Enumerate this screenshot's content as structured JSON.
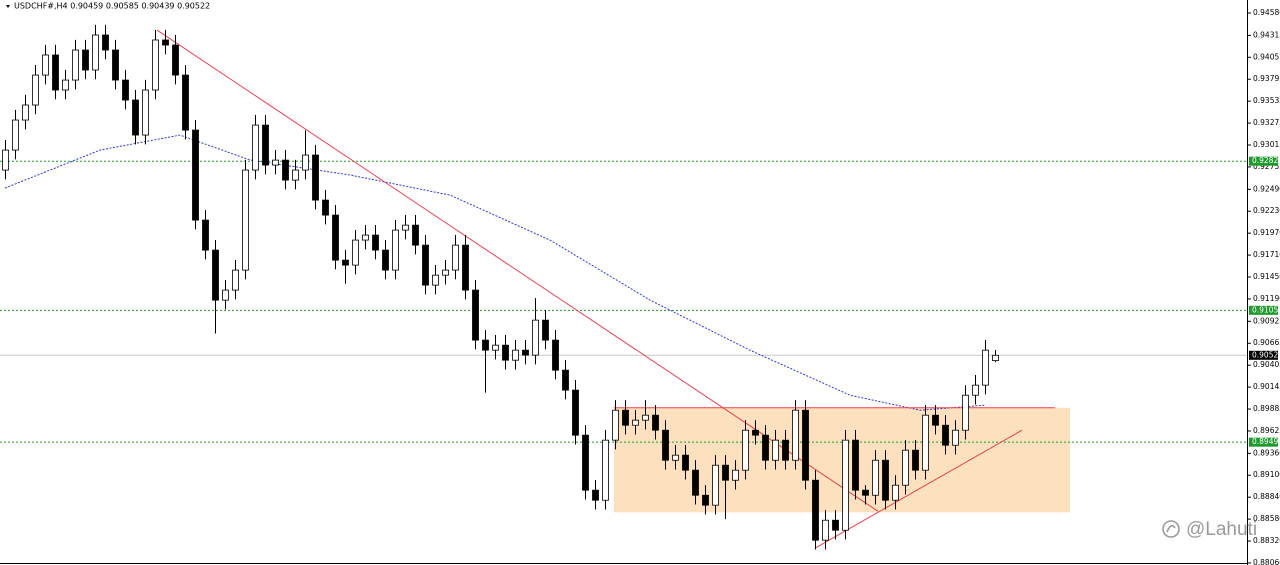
{
  "chart_data": {
    "type": "candlestick",
    "title": "USDCHF#,H4 0.90459 0.90585 0.90439 0.90522",
    "watermark": "@Lahuti",
    "xlim": [
      -0.5,
      124
    ],
    "ylim": [
      0.88036,
      0.94734
    ],
    "yticks": [
      {
        "value": 0.9458,
        "label": "0.94580"
      },
      0.94315,
      0.94055,
      0.93795,
      0.93535,
      0.93275,
      0.93015,
      0.92755,
      {
        "value": 0.9249,
        "label": "0.92490"
      },
      {
        "value": 0.9223,
        "label": "0.92230"
      },
      {
        "value": 0.9197,
        "label": "0.91970"
      },
      {
        "value": 0.9171,
        "label": "0.91710"
      },
      {
        "value": 0.9145,
        "label": "0.91450"
      },
      {
        "value": 0.9119,
        "label": "0.91190"
      },
      0.90925,
      0.90665,
      0.90405,
      0.90145,
      0.89885,
      0.89625,
      {
        "value": 0.8936,
        "label": "0.89360"
      },
      {
        "value": 0.891,
        "label": "0.89100"
      },
      {
        "value": 0.8884,
        "label": "0.88840"
      },
      {
        "value": 0.8858,
        "label": "0.88580"
      },
      {
        "value": 0.8832,
        "label": "0.88320"
      },
      {
        "value": 0.8806,
        "label": "0.88060"
      }
    ],
    "up_color": "#ffffff",
    "down_color": "#000000",
    "open": [
      0.92718,
      0.92955,
      0.93311,
      0.93489,
      0.93844,
      0.94082,
      0.93667,
      0.93785,
      0.94141,
      0.93904,
      0.94319,
      0.94141,
      0.93785,
      0.93548,
      0.93133,
      0.93667,
      0.9426,
      0.942,
      0.93844,
      0.93192,
      0.92125,
      0.91769,
      0.91176,
      0.91295,
      0.91532,
      0.92718,
      0.93251,
      0.92777,
      0.92836,
      0.92599,
      0.92718,
      0.92896,
      0.92362,
      0.92184,
      0.9165,
      0.91591,
      0.91888,
      0.91947,
      0.91769,
      0.91532,
      0.92006,
      0.92065,
      0.91828,
      0.91354,
      0.91472,
      0.91532,
      0.91828,
      0.91295,
      0.90702,
      0.90583,
      0.90642,
      0.90464,
      0.90583,
      0.90524,
      0.90939,
      0.90702,
      0.90346,
      0.90109,
      0.89575,
      0.88923,
      0.88804,
      0.89516,
      0.89871,
      0.89693,
      0.89753,
      0.89812,
      0.89634,
      0.89278,
      0.89338,
      0.8916,
      0.88863,
      0.88745,
      0.89219,
      0.89041,
      0.8916,
      0.89634,
      0.89575,
      0.89278,
      0.89516,
      0.89278,
      0.89871,
      0.89041,
      0.8833,
      0.88567,
      0.88448,
      0.89516,
      0.88923,
      0.88863,
      0.89278,
      0.88804,
      0.88982,
      0.89397,
      0.8916,
      0.89812,
      0.89693,
      0.89456,
      0.89634,
      0.90049,
      0.90168,
      0.90459
    ],
    "high": [
      0.93075,
      0.93431,
      0.93609,
      0.93964,
      0.94202,
      0.94202,
      0.93905,
      0.94261,
      0.94261,
      0.94439,
      0.94439,
      0.94261,
      0.93905,
      0.93668,
      0.93787,
      0.9438,
      0.9438,
      0.9432,
      0.93964,
      0.93312,
      0.92245,
      0.91889,
      0.91415,
      0.91652,
      0.92838,
      0.93371,
      0.93371,
      0.92956,
      0.92956,
      0.92838,
      0.9319,
      0.93016,
      0.92482,
      0.92304,
      0.9177,
      0.92008,
      0.92067,
      0.92067,
      0.91889,
      0.92126,
      0.92185,
      0.92185,
      0.91948,
      0.91592,
      0.91652,
      0.91948,
      0.91948,
      0.91415,
      0.90822,
      0.90762,
      0.90762,
      0.90703,
      0.90703,
      0.912,
      0.91059,
      0.90822,
      0.90466,
      0.90229,
      0.89695,
      0.89043,
      0.89636,
      0.89991,
      0.89991,
      0.89873,
      0.8999,
      0.89932,
      0.89754,
      0.89458,
      0.89458,
      0.8928,
      0.88983,
      0.89339,
      0.89339,
      0.8928,
      0.89754,
      0.89754,
      0.89695,
      0.89636,
      0.89636,
      0.89991,
      0.89991,
      0.89161,
      0.88687,
      0.88687,
      0.89636,
      0.89636,
      0.88983,
      0.89398,
      0.89398,
      0.89102,
      0.89517,
      0.89517,
      0.89932,
      0.89932,
      0.89813,
      0.89754,
      0.90169,
      0.90288,
      0.90703,
      0.90585
    ],
    "low": [
      0.92608,
      0.92845,
      0.93201,
      0.93379,
      0.93734,
      0.93557,
      0.93557,
      0.93675,
      0.93794,
      0.93794,
      0.94031,
      0.93675,
      0.93438,
      0.93023,
      0.93023,
      0.93557,
      0.9409,
      0.93734,
      0.93082,
      0.92015,
      0.91659,
      0.9078,
      0.91066,
      0.91185,
      0.91422,
      0.92608,
      0.92667,
      0.92667,
      0.92489,
      0.92489,
      0.92608,
      0.92252,
      0.92074,
      0.9154,
      0.9137,
      0.91481,
      0.91778,
      0.91659,
      0.91422,
      0.91422,
      0.91896,
      0.91718,
      0.91244,
      0.91244,
      0.91362,
      0.91422,
      0.91185,
      0.90592,
      0.9008,
      0.90473,
      0.90354,
      0.90354,
      0.90414,
      0.90414,
      0.90592,
      0.90236,
      0.89999,
      0.89465,
      0.88813,
      0.88694,
      0.88694,
      0.89406,
      0.89583,
      0.89583,
      0.89643,
      0.89524,
      0.89168,
      0.89168,
      0.8905,
      0.88753,
      0.88635,
      0.88635,
      0.8858,
      0.88931,
      0.8905,
      0.89465,
      0.89168,
      0.89168,
      0.89168,
      0.89168,
      0.88931,
      0.8822,
      0.8822,
      0.88338,
      0.88338,
      0.88813,
      0.88753,
      0.88753,
      0.88694,
      0.88694,
      0.88872,
      0.8905,
      0.8905,
      0.89583,
      0.89346,
      0.89346,
      0.89524,
      0.89939,
      0.90058,
      0.90439
    ],
    "close": [
      0.92955,
      0.93311,
      0.93489,
      0.93844,
      0.94082,
      0.93667,
      0.93785,
      0.94141,
      0.93904,
      0.94319,
      0.94141,
      0.93785,
      0.93548,
      0.93133,
      0.93667,
      0.9426,
      0.942,
      0.93844,
      0.93192,
      0.92125,
      0.91769,
      0.91176,
      0.91295,
      0.91532,
      0.92718,
      0.93251,
      0.92777,
      0.92836,
      0.92599,
      0.92718,
      0.92896,
      0.92362,
      0.92184,
      0.9165,
      0.91591,
      0.91888,
      0.91947,
      0.91769,
      0.91532,
      0.92006,
      0.92065,
      0.91828,
      0.91354,
      0.91472,
      0.91532,
      0.91828,
      0.91295,
      0.90702,
      0.90583,
      0.90642,
      0.90464,
      0.90583,
      0.90524,
      0.90939,
      0.90702,
      0.90346,
      0.90109,
      0.89575,
      0.88923,
      0.88804,
      0.89516,
      0.89871,
      0.89693,
      0.89753,
      0.89812,
      0.89634,
      0.89278,
      0.89338,
      0.8916,
      0.88863,
      0.88745,
      0.89219,
      0.89041,
      0.8916,
      0.89634,
      0.89575,
      0.89278,
      0.89516,
      0.89278,
      0.89871,
      0.89041,
      0.8833,
      0.88567,
      0.88448,
      0.89516,
      0.88923,
      0.88863,
      0.89278,
      0.88804,
      0.88982,
      0.89397,
      0.8916,
      0.89812,
      0.89693,
      0.89456,
      0.89634,
      0.90049,
      0.90168,
      0.90583,
      0.90522
    ],
    "moving_average": {
      "color": "#2a3bd6",
      "x": [
        0,
        9.5,
        17.5,
        24.5,
        34.5,
        44.5,
        54.5,
        64.5,
        74.5,
        84.5,
        91.5,
        98
      ],
      "values": [
        0.92504,
        0.92955,
        0.93133,
        0.92837,
        0.92659,
        0.92421,
        0.91888,
        0.91176,
        0.90583,
        0.90049,
        0.89871,
        0.8993
      ]
    },
    "rectangle": {
      "color": "#fde0bd",
      "x": [
        60.9,
        106.5
      ],
      "y": [
        0.899,
        0.8866
      ]
    },
    "trendlines": [
      {
        "color": "#e8424f",
        "x": [
          15.2,
          87.3
        ],
        "y": [
          0.94378,
          0.88673
        ]
      },
      {
        "color": "#e8424f",
        "x": [
          81,
          101.7
        ],
        "y": [
          0.88235,
          0.89634
        ]
      },
      {
        "color": "#e8424f",
        "x": [
          60.9,
          105
        ],
        "y": [
          0.899,
          0.899
        ]
      }
    ],
    "levels": [
      {
        "value": 0.92823,
        "color": "#1f9a2c",
        "label_color": "#1f9a2c"
      },
      {
        "value": 0.91055,
        "color": "#1f9a2c",
        "label_color": "#1f9a2c"
      },
      {
        "value": 0.89492,
        "color": "#1f9a2c",
        "label_color": "#1f9a2c"
      },
      {
        "value": 0.90522,
        "color": "#c8c8c8",
        "label_color": "#000000"
      }
    ]
  }
}
